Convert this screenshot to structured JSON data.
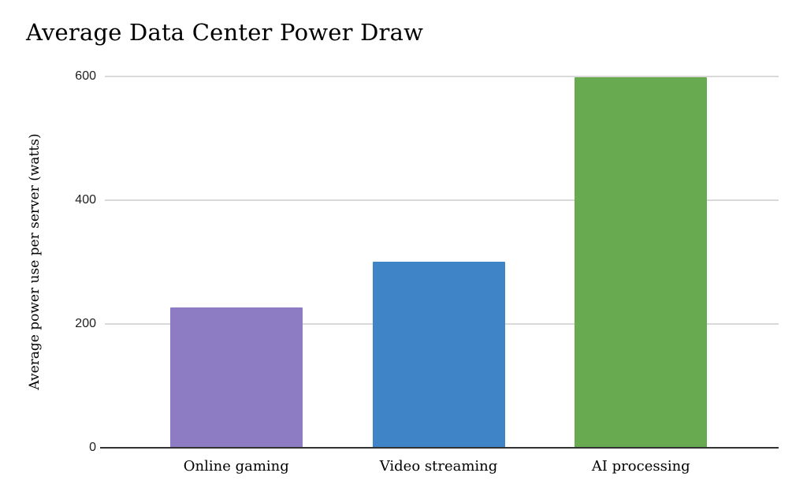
{
  "chart_data": {
    "type": "bar",
    "title": "Average Data Center Power Draw",
    "ylabel": "Average power use per server (watts)",
    "xlabel": "",
    "categories": [
      "Online gaming",
      "Video streaming",
      "AI processing"
    ],
    "values": [
      225,
      300,
      598
    ],
    "bar_colors": [
      "#8d7cc3",
      "#3e84c6",
      "#67aa4f"
    ],
    "yticks": [
      0,
      200,
      400,
      600
    ],
    "ylim": [
      0,
      600
    ],
    "grid": true,
    "legend_position": "none"
  },
  "colors": {
    "gridline": "#d9d9d9",
    "axis_line": "#333333",
    "title_text": "#000000",
    "tick_text": "#1f1f1f",
    "background": "#ffffff"
  }
}
